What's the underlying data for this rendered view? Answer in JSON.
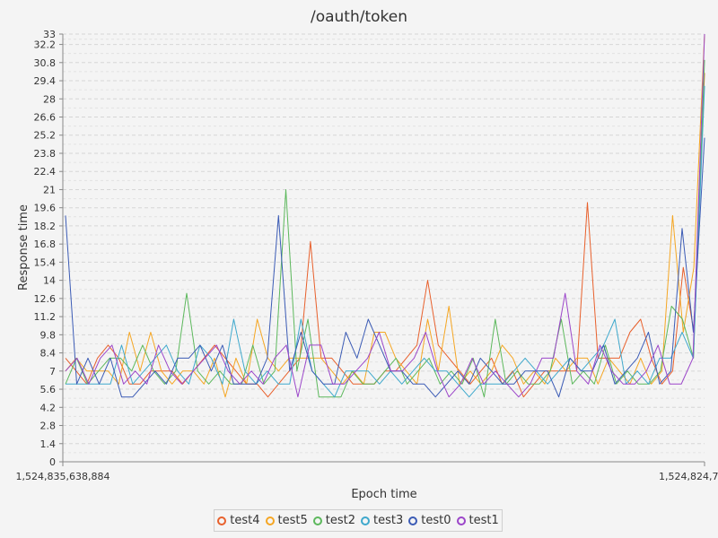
{
  "chart_data": {
    "type": "line",
    "title": "/oauth/token",
    "xlabel": "Epoch time",
    "ylabel": "Response time",
    "x_tick_labels": [
      "1,524,835,638,884",
      "1,524,824,7"
    ],
    "ylim": [
      0,
      33
    ],
    "y_ticks": [
      0,
      1.4,
      2.8,
      4.2,
      5.6,
      7,
      8.4,
      9.8,
      11.2,
      12.6,
      14,
      15.4,
      16.8,
      18.2,
      19.6,
      21,
      22.4,
      23.8,
      25.2,
      26.6,
      28,
      29.4,
      30.8,
      32.2,
      33
    ],
    "y_tick_labels": [
      "0",
      "1.4",
      "2.8",
      "4.2",
      "5.6",
      "7",
      "8.4",
      "9.8",
      "11.2",
      "12.6",
      "14",
      "15.4",
      "16.8",
      "18.2",
      "19.6",
      "21",
      "22.4",
      "23.8",
      "25.2",
      "26.6",
      "28",
      "29.4",
      "30.8",
      "32.2",
      "33"
    ],
    "grid": true,
    "legend_position": "bottom",
    "series": [
      {
        "name": "test4",
        "color": "#e8602c",
        "values": [
          8,
          7,
          6,
          8,
          9,
          8,
          6,
          6,
          7,
          7,
          7,
          6,
          7,
          8,
          9,
          8,
          7,
          6,
          6,
          5,
          6,
          7,
          8,
          17,
          8,
          8,
          7,
          6,
          6,
          6,
          7,
          7,
          8,
          9,
          14,
          9,
          8,
          7,
          6,
          7,
          8,
          6,
          7,
          5,
          6,
          7,
          7,
          7,
          7,
          20,
          8,
          8,
          8,
          10,
          11,
          8,
          6,
          7,
          15,
          10,
          30
        ]
      },
      {
        "name": "test5",
        "color": "#f5a623",
        "values": [
          7,
          8,
          7,
          7,
          7,
          6,
          10,
          7,
          10,
          7,
          6,
          7,
          7,
          6,
          8,
          5,
          8,
          6,
          11,
          8,
          7,
          8,
          8,
          8,
          8,
          7,
          6,
          7,
          6,
          10,
          10,
          8,
          7,
          6,
          11,
          7,
          12,
          6,
          7,
          6,
          7,
          9,
          8,
          6,
          7,
          6,
          8,
          7,
          8,
          8,
          6,
          8,
          7,
          6,
          8,
          6,
          7,
          19,
          10,
          15,
          33
        ]
      },
      {
        "name": "test2",
        "color": "#5cb85c",
        "values": [
          6,
          8,
          6,
          7,
          8,
          8,
          7,
          9,
          7,
          6,
          7,
          13,
          7,
          6,
          7,
          6,
          6,
          9,
          6,
          7,
          21,
          7,
          11,
          5,
          5,
          5,
          7,
          6,
          6,
          7,
          8,
          6,
          7,
          8,
          6,
          7,
          6,
          8,
          5,
          11,
          6,
          7,
          6,
          6,
          7,
          11,
          6,
          7,
          6,
          9,
          6,
          7,
          6,
          6,
          7,
          12,
          11,
          8,
          31
        ]
      },
      {
        "name": "test3",
        "color": "#3ea8cc",
        "values": [
          6,
          6,
          6,
          6,
          6,
          9,
          6,
          7,
          8,
          9,
          7,
          6,
          9,
          8,
          6,
          11,
          7,
          6,
          7,
          6,
          6,
          11,
          7,
          6,
          5,
          7,
          7,
          7,
          6,
          7,
          6,
          7,
          8,
          7,
          7,
          6,
          5,
          6,
          6,
          6,
          7,
          8,
          7,
          6,
          7,
          8,
          7,
          8,
          9,
          11,
          6,
          7,
          6,
          8,
          8,
          10,
          8,
          29
        ]
      },
      {
        "name": "test0",
        "color": "#3b5bb5",
        "values": [
          19,
          6,
          8,
          6,
          8,
          5,
          5,
          6,
          7,
          6,
          8,
          8,
          9,
          7,
          9,
          6,
          6,
          6,
          8,
          19,
          7,
          10,
          7,
          6,
          6,
          10,
          8,
          11,
          9,
          7,
          7,
          6,
          6,
          5,
          6,
          7,
          6,
          8,
          7,
          6,
          6,
          7,
          7,
          7,
          5,
          8,
          7,
          7,
          9,
          6,
          7,
          8,
          10,
          6,
          7,
          18,
          10,
          25
        ]
      },
      {
        "name": "test1",
        "color": "#9b45c9",
        "values": [
          7,
          8,
          6,
          8,
          9,
          6,
          7,
          6,
          9,
          7,
          6,
          7,
          8,
          9,
          7,
          6,
          7,
          6,
          8,
          9,
          5,
          9,
          9,
          6,
          6,
          7,
          8,
          10,
          7,
          7,
          8,
          10,
          7,
          5,
          6,
          8,
          6,
          7,
          6,
          5,
          6,
          8,
          8,
          13,
          7,
          6,
          9,
          7,
          6,
          6,
          7,
          9,
          6,
          6,
          8,
          33
        ]
      }
    ]
  }
}
